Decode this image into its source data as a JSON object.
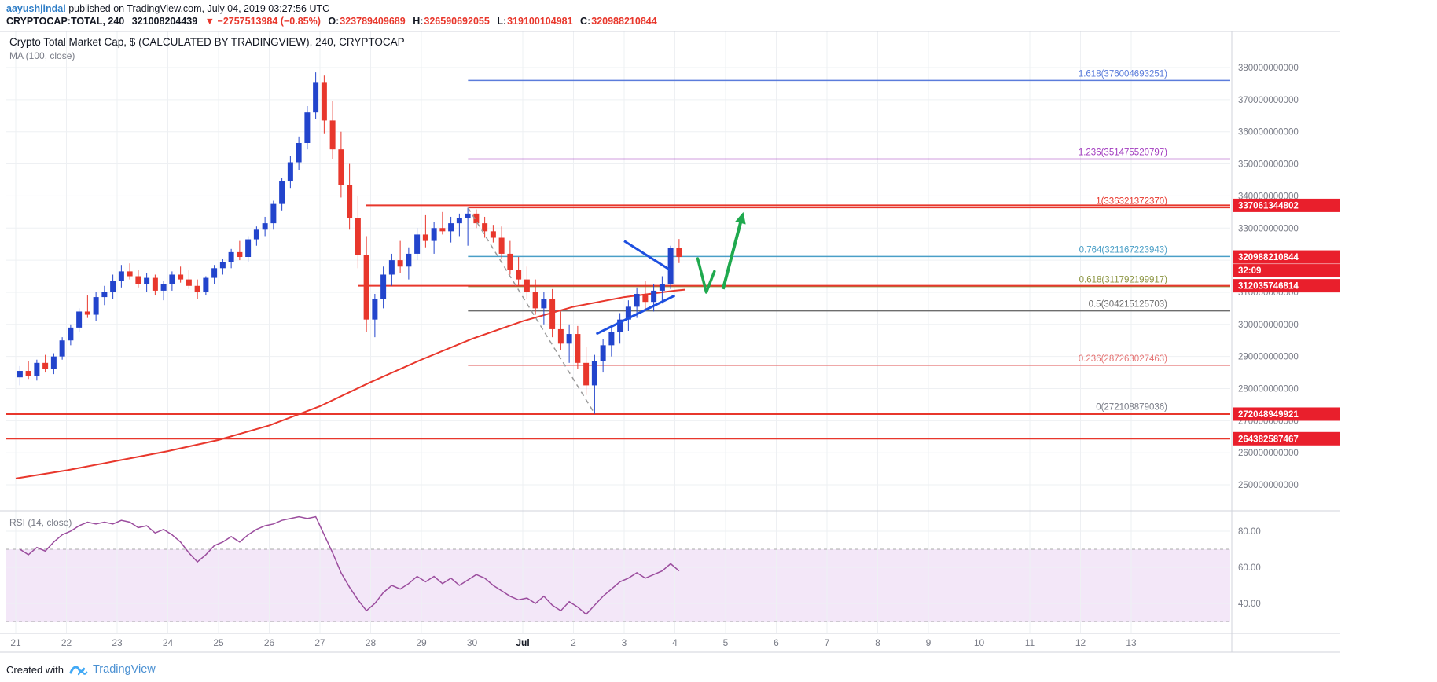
{
  "header": {
    "byline": {
      "author": "aayushjindal",
      "rest": " published on TradingView.com, July 04, 2019 03:27:56 UTC"
    },
    "symbol_line": {
      "symbol": "CRYPTOCAP:TOTAL, 240",
      "last": "321008204439",
      "change": "▼ −2757513984 (−0.85%)",
      "ohlc": [
        {
          "label": "O:",
          "value": "323789409689"
        },
        {
          "label": "H:",
          "value": "326590692055"
        },
        {
          "label": "L:",
          "value": "319100104981"
        },
        {
          "label": "C:",
          "value": "320988210844"
        }
      ]
    }
  },
  "chart": {
    "title": "Crypto Total Market Cap, $ (CALCULATED BY TRADINGVIEW), 240, CRYPTOCAP",
    "ma_label": "MA (100, close)",
    "rsi_label": "RSI (14, close)"
  },
  "footer": {
    "created_with": "Created with",
    "brand": "TradingView"
  },
  "colors": {
    "candle_up": "#2244cc",
    "candle_down": "#e8372c",
    "ma_line": "#e8372c",
    "ray_red": "#e8372c",
    "badge_red": "#e91f2c",
    "rsi_line": "#9b4d9e",
    "grid": "#eef0f3",
    "pane_border": "#d0d3db",
    "axis_text": "#787b86",
    "drawn_blue": "#1d4fe0",
    "drawn_green": "#1fa94e",
    "dashed_gray": "#9a9a9a"
  },
  "chart_data": {
    "type": "candlestick",
    "unit_multiplier": 1000000000,
    "title": "Crypto Total Market Cap, $ (CALCULATED BY TRADINGVIEW), 240, CRYPTOCAP",
    "layout": {
      "grid": true,
      "panes": [
        "price",
        "rsi"
      ],
      "legend": "none"
    },
    "x_axis": {
      "tick_labels": [
        "21",
        "22",
        "23",
        "24",
        "25",
        "26",
        "27",
        "28",
        "29",
        "30",
        "Jul",
        "2",
        "3",
        "4",
        "5",
        "6",
        "7",
        "8",
        "9",
        "10",
        "11",
        "12",
        "13"
      ],
      "strong_label": "Jul"
    },
    "y_axis_main": {
      "ticks": [
        {
          "price": 380,
          "label": "380000000000"
        },
        {
          "price": 370,
          "label": "370000000000"
        },
        {
          "price": 360,
          "label": "360000000000"
        },
        {
          "price": 350,
          "label": "350000000000"
        },
        {
          "price": 340,
          "label": "340000000000"
        },
        {
          "price": 330,
          "label": "330000000000"
        },
        {
          "price": 320,
          "label": "320000000000"
        },
        {
          "price": 310,
          "label": "310000000000"
        },
        {
          "price": 300,
          "label": "300000000000"
        },
        {
          "price": 290,
          "label": "290000000000"
        },
        {
          "price": 280,
          "label": "280000000000"
        },
        {
          "price": 270,
          "label": "270000000000"
        },
        {
          "price": 260,
          "label": "260000000000"
        },
        {
          "price": 250,
          "label": "250000000000"
        }
      ]
    },
    "y_axis_rsi": {
      "ticks": [
        {
          "value": 80,
          "label": "80.00"
        },
        {
          "value": 60,
          "label": "60.00"
        },
        {
          "value": 40,
          "label": "40.00"
        }
      ],
      "band": {
        "upper": 70,
        "lower": 30
      }
    },
    "candles": [
      [
        283.5,
        287,
        281,
        285.5
      ],
      [
        285.5,
        288.5,
        283,
        284
      ],
      [
        284,
        289,
        282.5,
        288
      ],
      [
        288,
        290.5,
        285,
        286
      ],
      [
        286,
        291,
        284.5,
        290
      ],
      [
        290,
        296,
        289,
        295
      ],
      [
        295,
        300,
        293.5,
        299
      ],
      [
        299,
        305,
        297.5,
        304
      ],
      [
        304,
        309,
        302,
        303
      ],
      [
        303,
        310,
        301,
        308.5
      ],
      [
        308.5,
        312,
        306,
        310
      ],
      [
        310,
        315.5,
        308,
        313.5
      ],
      [
        313.5,
        318.5,
        311.5,
        316.5
      ],
      [
        316.5,
        319,
        314,
        315
      ],
      [
        315,
        317,
        311.5,
        312.5
      ],
      [
        312.5,
        316,
        310,
        314.5
      ],
      [
        314.5,
        315.5,
        309,
        310.5
      ],
      [
        310.5,
        313.5,
        307.5,
        312.5
      ],
      [
        312.5,
        316.5,
        310.5,
        315.5
      ],
      [
        315.5,
        318,
        313,
        314
      ],
      [
        314,
        317,
        311,
        312
      ],
      [
        312,
        314,
        308,
        310
      ],
      [
        310,
        315,
        309,
        314.5
      ],
      [
        314.5,
        318.5,
        312.5,
        317.5
      ],
      [
        317.5,
        320.5,
        315.5,
        319.5
      ],
      [
        319.5,
        323.5,
        317.5,
        322.5
      ],
      [
        322.5,
        326,
        320,
        321
      ],
      [
        321,
        327.5,
        319.5,
        326.5
      ],
      [
        326.5,
        330.5,
        324.5,
        329.5
      ],
      [
        329.5,
        333.5,
        327.5,
        331.5
      ],
      [
        331.5,
        338.5,
        329.5,
        337.5
      ],
      [
        337.5,
        345.5,
        335.5,
        344.5
      ],
      [
        344.5,
        352.5,
        342.5,
        350.5
      ],
      [
        350.5,
        358.5,
        348,
        356.5
      ],
      [
        356.5,
        368,
        354.5,
        366
      ],
      [
        366,
        378.5,
        364,
        375.5
      ],
      [
        375.5,
        377.5,
        359.5,
        363.5
      ],
      [
        363.5,
        369.5,
        351.5,
        354.5
      ],
      [
        354.5,
        360,
        339.5,
        343.5
      ],
      [
        343.5,
        350,
        329.5,
        333
      ],
      [
        333,
        340,
        317.5,
        321.5
      ],
      [
        321.5,
        327.5,
        297.5,
        301.5
      ],
      [
        301.5,
        309.5,
        296,
        308
      ],
      [
        308,
        318,
        305,
        315.5
      ],
      [
        315.5,
        322,
        312,
        320
      ],
      [
        320,
        326,
        316,
        318
      ],
      [
        318,
        324,
        314,
        322
      ],
      [
        322,
        330,
        320,
        328
      ],
      [
        328,
        334,
        324,
        326
      ],
      [
        326,
        332,
        322,
        330
      ],
      [
        330,
        335,
        328,
        329
      ],
      [
        329,
        333.5,
        325.5,
        331.5
      ],
      [
        331.5,
        334.5,
        327.5,
        333
      ],
      [
        333,
        336.3,
        324.5,
        334.5
      ],
      [
        334.5,
        335.8,
        330,
        331.5
      ],
      [
        331.5,
        333.5,
        327,
        329
      ],
      [
        329,
        331,
        325.5,
        327
      ],
      [
        327,
        330.5,
        320.5,
        322
      ],
      [
        322,
        326,
        315.5,
        317
      ],
      [
        317,
        321,
        312,
        314
      ],
      [
        314,
        318,
        308,
        310
      ],
      [
        310,
        314,
        303,
        305
      ],
      [
        305,
        310,
        300,
        308
      ],
      [
        308,
        311,
        296,
        298.5
      ],
      [
        298.5,
        304,
        292,
        294
      ],
      [
        294,
        300,
        288,
        297
      ],
      [
        297,
        299.5,
        286,
        288
      ],
      [
        288,
        293,
        278,
        281
      ],
      [
        281,
        290.5,
        272.1,
        288.5
      ],
      [
        288.5,
        295.5,
        285,
        293.5
      ],
      [
        293.5,
        299.5,
        290,
        297.5
      ],
      [
        297.5,
        303.5,
        294,
        301.5
      ],
      [
        301.5,
        307.5,
        298,
        305.5
      ],
      [
        305.5,
        311.5,
        302,
        309.5
      ],
      [
        309.5,
        313.5,
        304.5,
        307
      ],
      [
        307,
        312.5,
        304,
        310.5
      ],
      [
        310.5,
        315,
        306.5,
        312.5
      ],
      [
        312.5,
        324.5,
        311,
        323.8
      ],
      [
        323.8,
        326.6,
        319.1,
        321
      ]
    ],
    "rsi": [
      70,
      67,
      71,
      69,
      74,
      78,
      80,
      83,
      85,
      84,
      85,
      84,
      86,
      85,
      82,
      83,
      79,
      81,
      78,
      74,
      68,
      63,
      67,
      72,
      74,
      77,
      74,
      78,
      81,
      83,
      84,
      86,
      87,
      88,
      87,
      88,
      78,
      68,
      57,
      49,
      42,
      36,
      40,
      46,
      50,
      48,
      51,
      55,
      52,
      55,
      51,
      54,
      50,
      53,
      56,
      54,
      50,
      47,
      44,
      42,
      43,
      40,
      44,
      39,
      36,
      41,
      38,
      34,
      39,
      44,
      48,
      52,
      54,
      57,
      54,
      56,
      58,
      62,
      58
    ],
    "ma100": [
      [
        0,
        252
      ],
      [
        1,
        254.5
      ],
      [
        2,
        257.5
      ],
      [
        3,
        260.5
      ],
      [
        4,
        264
      ],
      [
        5,
        268.5
      ],
      [
        6,
        274.5
      ],
      [
        7,
        282
      ],
      [
        8,
        289
      ],
      [
        9,
        295.5
      ],
      [
        10,
        301
      ],
      [
        11,
        305.5
      ],
      [
        12,
        308.5
      ],
      [
        13,
        310.5
      ],
      [
        13.2,
        310.8
      ]
    ],
    "fib_anchor_day": 8.92,
    "fib_levels": [
      {
        "label": "1.618(376004693251)",
        "price": 376.005,
        "color": "#5b7cdb"
      },
      {
        "label": "1.236(351475520797)",
        "price": 351.476,
        "color": "#a23bbf"
      },
      {
        "label": "1(336321372370)",
        "price": 336.321,
        "color": "#e8372c"
      },
      {
        "label": "0.764(321167223943)",
        "price": 321.167,
        "color": "#4a9fc7"
      },
      {
        "label": "0.618(311792199917)",
        "price": 311.792,
        "color": "#8b9440"
      },
      {
        "label": "0.5(304215125703)",
        "price": 304.215,
        "color": "#6d6d6d"
      },
      {
        "label": "0.236(287263027463)",
        "price": 287.263,
        "color": "#e57373"
      },
      {
        "label": "0(272108879036)",
        "price": 272.109,
        "color": "#787b86"
      }
    ],
    "rays": [
      {
        "badge": "337061344802",
        "price": 337.061,
        "from_day": 6.9
      },
      {
        "badge": "312035746814",
        "price": 312.036,
        "from_day": 6.75
      },
      {
        "badge": "272048949921",
        "price": 272.049,
        "from_day": -0.19
      },
      {
        "badge": "264382587467",
        "price": 264.383,
        "from_day": -0.19
      }
    ],
    "current_price": {
      "badge": "320988210844",
      "price": 320.988,
      "countdown": "32:09"
    },
    "annotations": {
      "trendline_dashed": {
        "from_day": 8.92,
        "from_price": 336.321,
        "to_day": 11.42,
        "to_price": 272.109
      },
      "blue_lines": [
        {
          "from_day": 12.0,
          "from_price": 326,
          "to_day": 12.9,
          "to_price": 317
        },
        {
          "from_day": 11.45,
          "from_price": 297,
          "to_day": 13.0,
          "to_price": 309
        }
      ],
      "green_check": [
        [
          13.45,
          320.5
        ],
        [
          13.62,
          310
        ],
        [
          13.78,
          316.5
        ]
      ],
      "green_arrow": {
        "from_day": 13.95,
        "from_price": 311,
        "to_day": 14.35,
        "to_price": 335
      }
    }
  }
}
